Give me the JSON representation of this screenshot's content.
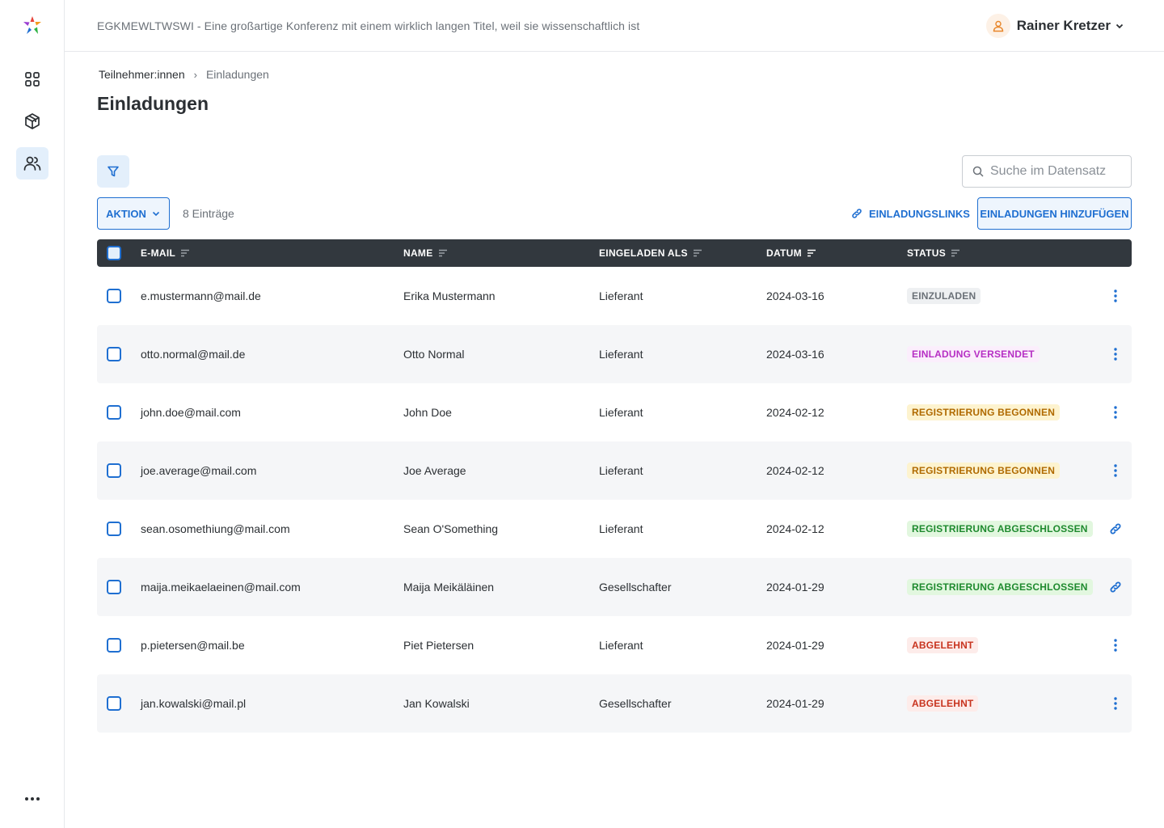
{
  "header": {
    "conference_title": "EGKMEWLTWSWI - Eine großartige Konferenz mit einem wirklich langen Titel, weil sie wissenschaftlich ist",
    "user_name": "Rainer Kretzer"
  },
  "breadcrumb": {
    "parent": "Teilnehmer:innen",
    "separator": "›",
    "current": "Einladungen"
  },
  "page_title": "Einladungen",
  "toolbar": {
    "search_placeholder": "Suche im Datensatz",
    "aktion_label": "AKTION",
    "entries_count": "8 Einträge",
    "links_label": "EINLADUNGSLINKS",
    "add_label": "EINLADUNGEN HINZUFÜGEN"
  },
  "table": {
    "columns": {
      "email": "E-MAIL",
      "name": "NAME",
      "role": "EINGELADEN ALS",
      "date": "DATUM",
      "status": "STATUS"
    },
    "rows": [
      {
        "email": "e.mustermann@mail.de",
        "name": "Erika Mustermann",
        "role": "Lieferant",
        "date": "2024-03-16",
        "status": "EINZULADEN",
        "status_kind": "neutral",
        "action": "more"
      },
      {
        "email": "otto.normal@mail.de",
        "name": "Otto Normal",
        "role": "Lieferant",
        "date": "2024-03-16",
        "status": "EINLADUNG VERSENDET",
        "status_kind": "sent",
        "action": "more"
      },
      {
        "email": "john.doe@mail.com",
        "name": "John Doe",
        "role": "Lieferant",
        "date": "2024-02-12",
        "status": "REGISTRIERUNG BEGONNEN",
        "status_kind": "started",
        "action": "more"
      },
      {
        "email": "joe.average@mail.com",
        "name": "Joe Average",
        "role": "Lieferant",
        "date": "2024-02-12",
        "status": "REGISTRIERUNG BEGONNEN",
        "status_kind": "started",
        "action": "more"
      },
      {
        "email": "sean.osomethiung@mail.com",
        "name": "Sean O'Something",
        "role": "Lieferant",
        "date": "2024-02-12",
        "status": "REGISTRIERUNG ABGESCHLOSSEN",
        "status_kind": "done",
        "action": "link"
      },
      {
        "email": "maija.meikaelaeinen@mail.com",
        "name": "Maija Meikäläinen",
        "role": "Gesellschafter",
        "date": "2024-01-29",
        "status": "REGISTRIERUNG ABGESCHLOSSEN",
        "status_kind": "done",
        "action": "link"
      },
      {
        "email": "p.pietersen@mail.be",
        "name": "Piet Pietersen",
        "role": "Lieferant",
        "date": "2024-01-29",
        "status": "ABGELEHNT",
        "status_kind": "declined",
        "action": "more"
      },
      {
        "email": "jan.kowalski@mail.pl",
        "name": "Jan Kowalski",
        "role": "Gesellschafter",
        "date": "2024-01-29",
        "status": "ABGELEHNT",
        "status_kind": "declined",
        "action": "more"
      }
    ]
  },
  "status_colors": {
    "neutral": {
      "fg": "#6b7178",
      "bg": "#eef0f2"
    },
    "sent": {
      "fg": "#b62fc4",
      "bg": "#fbeefc"
    },
    "started": {
      "fg": "#b06a00",
      "bg": "#fdf3cf"
    },
    "done": {
      "fg": "#1e8a2e",
      "bg": "#e2f7df"
    },
    "declined": {
      "fg": "#c8341f",
      "bg": "#fdecea"
    }
  },
  "colors": {
    "accent": "#1f6fd1",
    "header_bg": "#32383e"
  }
}
